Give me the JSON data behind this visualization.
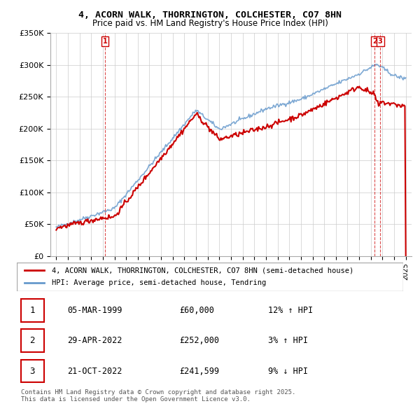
{
  "title_line1": "4, ACORN WALK, THORRINGTON, COLCHESTER, CO7 8HN",
  "title_line2": "Price paid vs. HM Land Registry's House Price Index (HPI)",
  "legend_label_red": "4, ACORN WALK, THORRINGTON, COLCHESTER, CO7 8HN (semi-detached house)",
  "legend_label_blue": "HPI: Average price, semi-detached house, Tendring",
  "ylabel": "",
  "xlabel": "",
  "ylim_min": 0,
  "ylim_max": 350000,
  "yticks": [
    0,
    50000,
    100000,
    150000,
    200000,
    250000,
    300000,
    350000
  ],
  "ytick_labels": [
    "£0",
    "£50K",
    "£100K",
    "£150K",
    "£200K",
    "£250K",
    "£300K",
    "£350K"
  ],
  "background_color": "#ffffff",
  "plot_bg_color": "#ffffff",
  "grid_color": "#cccccc",
  "red_color": "#cc0000",
  "blue_color": "#6699cc",
  "marker_color_red": "#cc0000",
  "transaction_points": [
    {
      "year": 1999.18,
      "price": 60000,
      "label": "1"
    },
    {
      "year": 2022.33,
      "price": 252000,
      "label": "2"
    },
    {
      "year": 2022.81,
      "price": 241599,
      "label": "3"
    }
  ],
  "footnote": "Contains HM Land Registry data © Crown copyright and database right 2025.\nThis data is licensed under the Open Government Licence v3.0.",
  "table_rows": [
    {
      "num": "1",
      "date": "05-MAR-1999",
      "price": "£60,000",
      "hpi": "12% ↑ HPI"
    },
    {
      "num": "2",
      "date": "29-APR-2022",
      "price": "£252,000",
      "hpi": "3% ↑ HPI"
    },
    {
      "num": "3",
      "date": "21-OCT-2022",
      "price": "£241,599",
      "hpi": "9% ↓ HPI"
    }
  ]
}
